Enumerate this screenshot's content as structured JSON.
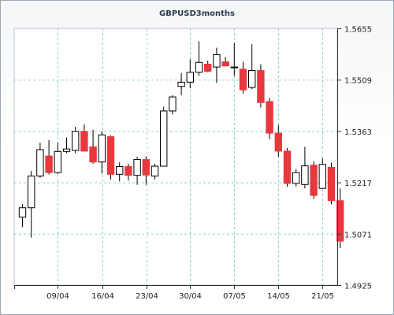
{
  "chart_data": {
    "type": "candlestick",
    "title": "GBPUSD3months",
    "y_ticks": [
      "1.5655",
      "1.5509",
      "1.5363",
      "1.5217",
      "1.5071",
      "1.4925"
    ],
    "ylim": [
      1.4925,
      1.5655
    ],
    "x_ticks": [
      "09/04",
      "16/04",
      "23/04",
      "30/04",
      "07/05",
      "14/05",
      "21/05"
    ],
    "grid": true,
    "colors": {
      "up": "#ffffff",
      "down": "#e8383d",
      "wick": "#000000",
      "grid": "#8fcfcf"
    },
    "candles": [
      {
        "o": 1.5118,
        "h": 1.5155,
        "l": 1.509,
        "c": 1.5145
      },
      {
        "o": 1.5145,
        "h": 1.525,
        "l": 1.506,
        "c": 1.5235
      },
      {
        "o": 1.5235,
        "h": 1.533,
        "l": 1.523,
        "c": 1.531
      },
      {
        "o": 1.5292,
        "h": 1.5337,
        "l": 1.524,
        "c": 1.5245
      },
      {
        "o": 1.5245,
        "h": 1.533,
        "l": 1.524,
        "c": 1.5305
      },
      {
        "o": 1.5305,
        "h": 1.5345,
        "l": 1.53,
        "c": 1.5312
      },
      {
        "o": 1.5308,
        "h": 1.5375,
        "l": 1.53,
        "c": 1.5362
      },
      {
        "o": 1.5362,
        "h": 1.5382,
        "l": 1.5305,
        "c": 1.5306
      },
      {
        "o": 1.5318,
        "h": 1.5367,
        "l": 1.527,
        "c": 1.5275
      },
      {
        "o": 1.5275,
        "h": 1.5362,
        "l": 1.5242,
        "c": 1.5352
      },
      {
        "o": 1.5347,
        "h": 1.535,
        "l": 1.5225,
        "c": 1.524
      },
      {
        "o": 1.524,
        "h": 1.5274,
        "l": 1.522,
        "c": 1.5262
      },
      {
        "o": 1.5262,
        "h": 1.527,
        "l": 1.5222,
        "c": 1.5237
      },
      {
        "o": 1.5237,
        "h": 1.529,
        "l": 1.521,
        "c": 1.5282
      },
      {
        "o": 1.5282,
        "h": 1.529,
        "l": 1.521,
        "c": 1.5238
      },
      {
        "o": 1.5235,
        "h": 1.527,
        "l": 1.5225,
        "c": 1.5263
      },
      {
        "o": 1.5263,
        "h": 1.5432,
        "l": 1.5263,
        "c": 1.542
      },
      {
        "o": 1.542,
        "h": 1.5465,
        "l": 1.541,
        "c": 1.546
      },
      {
        "o": 1.549,
        "h": 1.5528,
        "l": 1.5465,
        "c": 1.5502
      },
      {
        "o": 1.5502,
        "h": 1.5567,
        "l": 1.5485,
        "c": 1.553
      },
      {
        "o": 1.553,
        "h": 1.5618,
        "l": 1.552,
        "c": 1.5558
      },
      {
        "o": 1.5553,
        "h": 1.5563,
        "l": 1.553,
        "c": 1.5533
      },
      {
        "o": 1.5545,
        "h": 1.56,
        "l": 1.55,
        "c": 1.558
      },
      {
        "o": 1.556,
        "h": 1.5574,
        "l": 1.5548,
        "c": 1.5548
      },
      {
        "o": 1.5545,
        "h": 1.5613,
        "l": 1.552,
        "c": 1.5545
      },
      {
        "o": 1.5539,
        "h": 1.556,
        "l": 1.547,
        "c": 1.548
      },
      {
        "o": 1.5487,
        "h": 1.561,
        "l": 1.5482,
        "c": 1.5535
      },
      {
        "o": 1.5535,
        "h": 1.5553,
        "l": 1.543,
        "c": 1.5444
      },
      {
        "o": 1.5447,
        "h": 1.5457,
        "l": 1.534,
        "c": 1.5357
      },
      {
        "o": 1.5357,
        "h": 1.538,
        "l": 1.529,
        "c": 1.5306
      },
      {
        "o": 1.5306,
        "h": 1.5315,
        "l": 1.5205,
        "c": 1.5214
      },
      {
        "o": 1.5214,
        "h": 1.5255,
        "l": 1.5205,
        "c": 1.5245
      },
      {
        "o": 1.5211,
        "h": 1.5318,
        "l": 1.52,
        "c": 1.5264
      },
      {
        "o": 1.5266,
        "h": 1.5277,
        "l": 1.517,
        "c": 1.518
      },
      {
        "o": 1.52,
        "h": 1.5285,
        "l": 1.52,
        "c": 1.5268
      },
      {
        "o": 1.526,
        "h": 1.5273,
        "l": 1.5155,
        "c": 1.5165
      },
      {
        "o": 1.5165,
        "h": 1.52,
        "l": 1.503,
        "c": 1.505
      }
    ]
  }
}
